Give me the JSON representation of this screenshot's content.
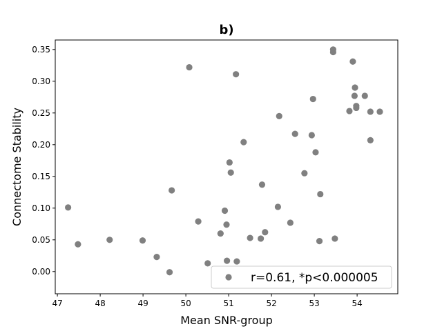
{
  "chart_data": {
    "type": "scatter",
    "title": "b)",
    "xlabel": "Mean SNR-group",
    "ylabel": "Connectome Stability",
    "xlim": [
      46.95,
      54.95
    ],
    "ylim": [
      -0.035,
      0.365
    ],
    "xticks": [
      47,
      48,
      49,
      50,
      51,
      52,
      53,
      54
    ],
    "yticks": [
      0.0,
      0.05,
      0.1,
      0.15,
      0.2,
      0.25,
      0.3,
      0.35
    ],
    "ytick_labels": [
      "0.00",
      "0.05",
      "0.10",
      "0.15",
      "0.20",
      "0.25",
      "0.30",
      "0.35"
    ],
    "grid": false,
    "legend_position": "lower-right",
    "legend": "r=0.61, *p<0.000005",
    "marker_color": "#808080",
    "points": [
      {
        "x": 47.25,
        "y": 0.101
      },
      {
        "x": 47.48,
        "y": 0.043
      },
      {
        "x": 48.22,
        "y": 0.05
      },
      {
        "x": 48.99,
        "y": 0.049
      },
      {
        "x": 49.32,
        "y": 0.023
      },
      {
        "x": 49.62,
        "y": -0.001
      },
      {
        "x": 49.67,
        "y": 0.128
      },
      {
        "x": 50.08,
        "y": 0.322
      },
      {
        "x": 50.29,
        "y": 0.079
      },
      {
        "x": 50.51,
        "y": 0.013
      },
      {
        "x": 50.81,
        "y": 0.06
      },
      {
        "x": 50.91,
        "y": 0.096
      },
      {
        "x": 50.95,
        "y": 0.074
      },
      {
        "x": 50.96,
        "y": 0.017
      },
      {
        "x": 51.02,
        "y": 0.172
      },
      {
        "x": 51.05,
        "y": 0.156
      },
      {
        "x": 51.17,
        "y": 0.311
      },
      {
        "x": 51.19,
        "y": 0.016
      },
      {
        "x": 51.35,
        "y": 0.204
      },
      {
        "x": 51.5,
        "y": 0.053
      },
      {
        "x": 51.75,
        "y": 0.052
      },
      {
        "x": 51.78,
        "y": 0.137
      },
      {
        "x": 51.85,
        "y": 0.062
      },
      {
        "x": 52.15,
        "y": 0.102
      },
      {
        "x": 52.18,
        "y": 0.245
      },
      {
        "x": 52.44,
        "y": 0.077
      },
      {
        "x": 52.55,
        "y": 0.217
      },
      {
        "x": 52.77,
        "y": 0.155
      },
      {
        "x": 52.94,
        "y": 0.215
      },
      {
        "x": 52.97,
        "y": 0.272
      },
      {
        "x": 53.03,
        "y": 0.188
      },
      {
        "x": 53.12,
        "y": 0.048
      },
      {
        "x": 53.14,
        "y": 0.122
      },
      {
        "x": 53.44,
        "y": 0.35
      },
      {
        "x": 53.44,
        "y": 0.346
      },
      {
        "x": 53.48,
        "y": 0.052
      },
      {
        "x": 53.82,
        "y": 0.253
      },
      {
        "x": 53.9,
        "y": 0.331
      },
      {
        "x": 53.94,
        "y": 0.277
      },
      {
        "x": 53.95,
        "y": 0.29
      },
      {
        "x": 53.98,
        "y": 0.261
      },
      {
        "x": 53.98,
        "y": 0.258
      },
      {
        "x": 54.18,
        "y": 0.277
      },
      {
        "x": 54.31,
        "y": 0.207
      },
      {
        "x": 54.31,
        "y": 0.252
      },
      {
        "x": 54.53,
        "y": 0.252
      }
    ]
  }
}
